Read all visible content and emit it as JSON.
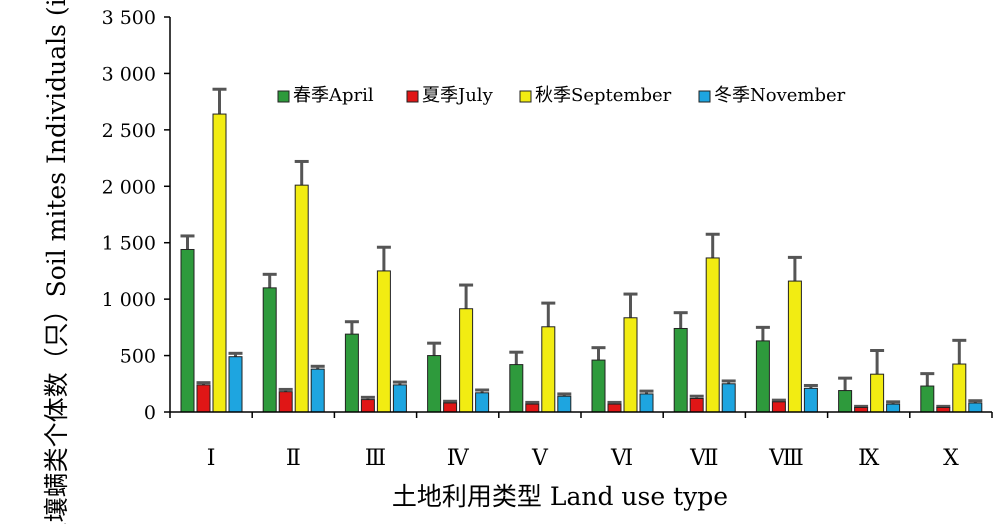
{
  "chart_data": {
    "type": "bar",
    "title": "",
    "xlabel": "土地利用类型 Land use type",
    "ylabel": "土壤螨类个体数（只）Soil mites Individuals (ind.)",
    "ylim": [
      0,
      3500
    ],
    "yticks": [
      0,
      500,
      1000,
      1500,
      2000,
      2500,
      3000,
      3500
    ],
    "ytick_labels": [
      "0",
      "500",
      "1 000",
      "1 500",
      "2 000",
      "2 500",
      "3 000",
      "3 500"
    ],
    "grid": false,
    "legend_position": "top-right",
    "categories": [
      "Ⅰ",
      "Ⅱ",
      "Ⅲ",
      "Ⅳ",
      "Ⅴ",
      "Ⅵ",
      "Ⅶ",
      "Ⅷ",
      "Ⅸ",
      "Ⅹ"
    ],
    "series": [
      {
        "name": "春季April",
        "color": "#2e9a3c",
        "values": [
          1440,
          1100,
          690,
          500,
          420,
          460,
          740,
          630,
          190,
          230
        ],
        "errors": [
          120,
          120,
          110,
          110,
          110,
          110,
          140,
          120,
          110,
          110
        ]
      },
      {
        "name": "夏季July",
        "color": "#e01616",
        "values": [
          240,
          180,
          110,
          80,
          70,
          70,
          120,
          90,
          40,
          40
        ],
        "errors": [
          20,
          20,
          20,
          15,
          15,
          15,
          20,
          15,
          10,
          10
        ]
      },
      {
        "name": "秋季September",
        "color": "#f2ec12",
        "values": [
          2640,
          2010,
          1250,
          915,
          755,
          835,
          1365,
          1160,
          335,
          425
        ],
        "errors": [
          220,
          210,
          210,
          210,
          210,
          210,
          210,
          210,
          210,
          210
        ]
      },
      {
        "name": "冬季November",
        "color": "#1ea5e0",
        "values": [
          490,
          380,
          240,
          170,
          140,
          160,
          250,
          210,
          70,
          80
        ],
        "errors": [
          30,
          25,
          25,
          25,
          20,
          25,
          25,
          25,
          20,
          20
        ]
      }
    ]
  }
}
